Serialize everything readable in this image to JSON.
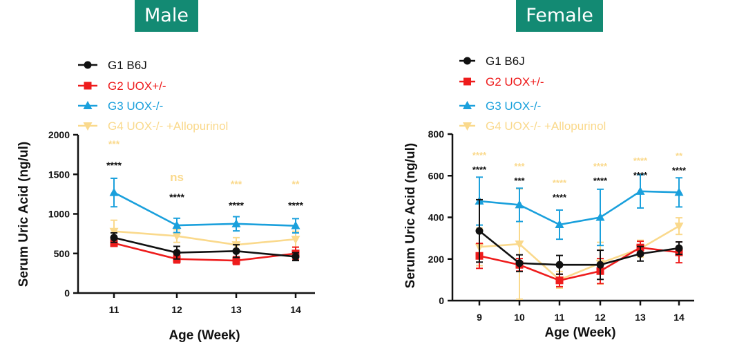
{
  "panels": {
    "male": {
      "title": "Male"
    },
    "female": {
      "title": "Female"
    }
  },
  "colors": {
    "G1": "#111111",
    "G2": "#ee1c1c",
    "G3": "#1aa0dc",
    "G4": "#fad98c"
  },
  "chart_data": [
    {
      "id": "male",
      "type": "line",
      "title": "Male",
      "xlabel": "Age (Week)",
      "ylabel": "Serum Uric Acid (ng/ul)",
      "x": [
        "11",
        "12",
        "13",
        "14"
      ],
      "ylim": [
        0,
        2000
      ],
      "yticks": [
        "0",
        "500",
        "1000",
        "1500",
        "2000"
      ],
      "legend_position": "top-left",
      "series": [
        {
          "name": "G1 B6J",
          "key": "G1",
          "marker": "circle",
          "values": [
            700,
            510,
            530,
            460
          ],
          "errors": [
            60,
            80,
            80,
            50
          ]
        },
        {
          "name": "G2 UOX+/-",
          "key": "G2",
          "marker": "square",
          "values": [
            630,
            430,
            410,
            500
          ],
          "errors": [
            40,
            50,
            50,
            80
          ]
        },
        {
          "name": "G3 UOX-/-",
          "key": "G3",
          "marker": "triangle",
          "values": [
            1270,
            855,
            875,
            850
          ],
          "errors": [
            180,
            90,
            90,
            90
          ]
        },
        {
          "name": "G4 UOX-/- +Allopurinol",
          "key": "G4",
          "marker": "triangle-down",
          "values": [
            780,
            720,
            610,
            680
          ],
          "errors": [
            140,
            80,
            90,
            100
          ]
        }
      ],
      "annotations": [
        {
          "x": "11",
          "rows": [
            {
              "text": "***",
              "key": "G4"
            },
            {
              "text": "****",
              "key": "G1"
            }
          ]
        },
        {
          "x": "12",
          "rows": [
            {
              "text": "ns",
              "key": "G4"
            },
            {
              "text": "****",
              "key": "G1"
            }
          ]
        },
        {
          "x": "13",
          "rows": [
            {
              "text": "***",
              "key": "G4"
            },
            {
              "text": "****",
              "key": "G1"
            }
          ]
        },
        {
          "x": "14",
          "rows": [
            {
              "text": "**",
              "key": "G4"
            },
            {
              "text": "****",
              "key": "G1"
            }
          ]
        }
      ]
    },
    {
      "id": "female",
      "type": "line",
      "title": "Female",
      "xlabel": "Age (Week)",
      "ylabel": "Serum Uric Acid (ng/ul)",
      "x": [
        "9",
        "10",
        "11",
        "12",
        "13",
        "14"
      ],
      "ylim": [
        0,
        800
      ],
      "yticks": [
        "0",
        "200",
        "400",
        "600",
        "800"
      ],
      "legend_position": "top-left",
      "series": [
        {
          "name": "G1 B6J",
          "key": "G1",
          "marker": "circle",
          "values": [
            335,
            180,
            172,
            172,
            225,
            252
          ],
          "errors": [
            150,
            40,
            45,
            70,
            35,
            30
          ]
        },
        {
          "name": "G2 UOX+/-",
          "key": "G2",
          "marker": "square",
          "values": [
            215,
            172,
            97,
            142,
            255,
            232
          ],
          "errors": [
            60,
            30,
            30,
            60,
            30,
            50
          ]
        },
        {
          "name": "G3 UOX-/-",
          "key": "G3",
          "marker": "triangle",
          "values": [
            478,
            460,
            365,
            400,
            525,
            520
          ],
          "errors": [
            115,
            80,
            70,
            135,
            80,
            70
          ]
        },
        {
          "name": "G4 UOX-/- +Allopurinol",
          "key": "G4",
          "marker": "triangle-down",
          "values": [
            258,
            272,
            100,
            180,
            250,
            358
          ],
          "errors": [
            90,
            265,
            40,
            100,
            40,
            40
          ]
        }
      ],
      "annotations": [
        {
          "x": "9",
          "rows": [
            {
              "text": "****",
              "key": "G4"
            },
            {
              "text": "****",
              "key": "G1"
            }
          ]
        },
        {
          "x": "10",
          "rows": [
            {
              "text": "***",
              "key": "G4"
            },
            {
              "text": "***",
              "key": "G1"
            }
          ]
        },
        {
          "x": "11",
          "rows": [
            {
              "text": "****",
              "key": "G4"
            },
            {
              "text": "****",
              "key": "G1"
            }
          ]
        },
        {
          "x": "12",
          "rows": [
            {
              "text": "****",
              "key": "G4"
            },
            {
              "text": "****",
              "key": "G1"
            }
          ]
        },
        {
          "x": "13",
          "rows": [
            {
              "text": "****",
              "key": "G4"
            },
            {
              "text": "****",
              "key": "G1"
            }
          ]
        },
        {
          "x": "14",
          "rows": [
            {
              "text": "**",
              "key": "G4"
            },
            {
              "text": "****",
              "key": "G1"
            }
          ]
        }
      ]
    }
  ]
}
